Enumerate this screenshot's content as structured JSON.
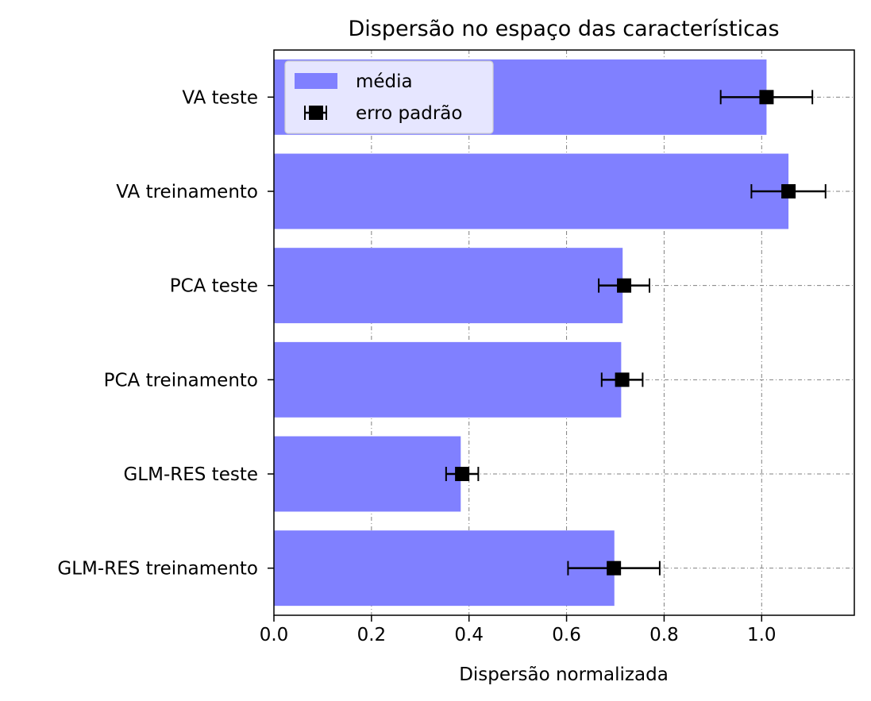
{
  "chart_data": {
    "type": "bar",
    "orientation": "horizontal",
    "title": "Dispersão no espaço das características",
    "xlabel": "Dispersão normalizada",
    "ylabel": "",
    "xlim": [
      0.0,
      1.19
    ],
    "xticks": [
      "0.0",
      "0.2",
      "0.4",
      "0.6",
      "0.8",
      "1.0"
    ],
    "categories": [
      "VA  teste",
      "VA treinamento",
      "PCA  teste",
      "PCA treinamento",
      "GLM-RES teste",
      "GLM-RES treinamento"
    ],
    "series": [
      {
        "name": "média",
        "values": [
          1.01,
          1.055,
          0.715,
          0.712,
          0.383,
          0.698
        ]
      },
      {
        "name": "erro padrão",
        "values": [
          1.01,
          1.055,
          0.718,
          0.714,
          0.386,
          0.697
        ],
        "errors": [
          0.094,
          0.076,
          0.052,
          0.042,
          0.033,
          0.094
        ]
      }
    ],
    "grid": true,
    "legend": "top-left",
    "colors": {
      "bar": "#8080ff",
      "marker": "#000000",
      "grid": "#808080"
    }
  }
}
